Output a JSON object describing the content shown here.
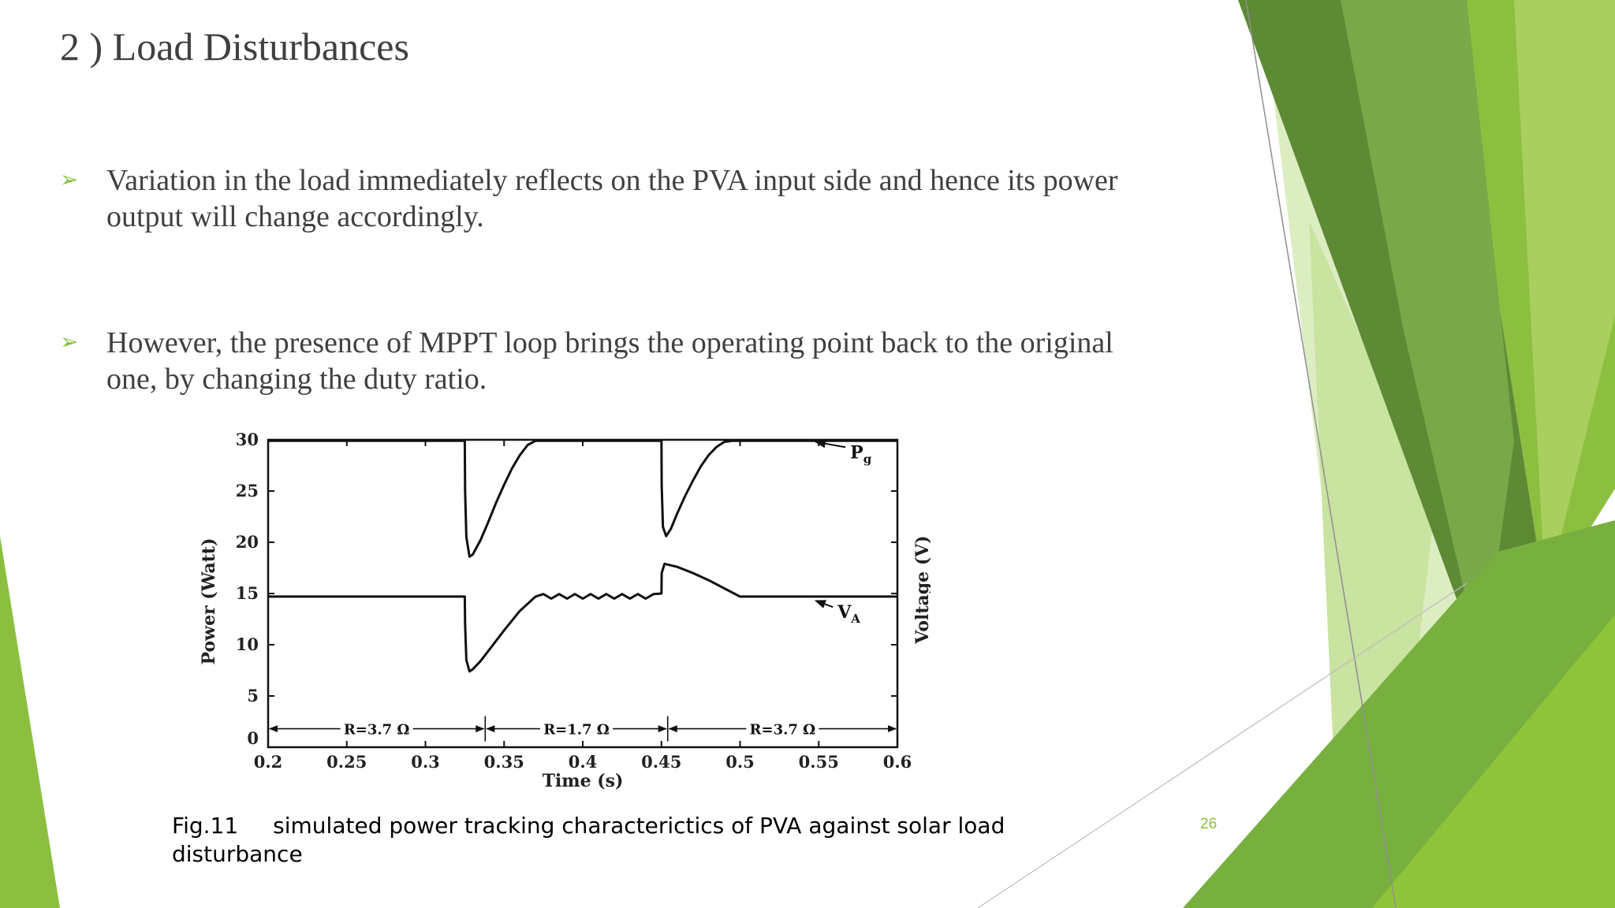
{
  "slide": {
    "title": "2 )  Load Disturbances",
    "bullets": [
      {
        "marker": "➢",
        "text": "Variation in the load immediately reflects on the PVA input side and hence its power output will change accordingly."
      },
      {
        "marker": "➢",
        "text": "However, the presence of MPPT loop brings the operating point back to the original one, by changing the duty ratio."
      }
    ],
    "caption_fig": "Fig.11",
    "caption_text": "simulated power tracking characterictics of PVA against solar  load disturbance",
    "slide_number": "26"
  },
  "colors": {
    "accent": "#8cbf3f",
    "text": "#404040",
    "green_dark": "#5e8a35",
    "green_mid": "#78a848",
    "green_light": "#8cbf3f",
    "green_pale": "#c9e3a0"
  },
  "chart_data": {
    "type": "line",
    "xlabel": "Time (s)",
    "ylabel": "Power (Watt)",
    "ylabel_right": "Voltage (V)",
    "xlim": [
      0.2,
      0.6
    ],
    "ylim": [
      0,
      30
    ],
    "x_ticks": [
      0.2,
      0.25,
      0.3,
      0.35,
      0.4,
      0.45,
      0.5,
      0.55,
      0.6
    ],
    "x_tick_labels": [
      "0.2",
      "0.25",
      "0.3",
      "0.35",
      "0.4",
      "0.45",
      "0.5",
      "0.55",
      "0.6"
    ],
    "y_ticks": [
      0,
      5,
      10,
      15,
      20,
      25,
      30
    ],
    "y_tick_labels": [
      "0",
      "5",
      "10",
      "15",
      "20",
      "25",
      "30"
    ],
    "series": [
      {
        "name": "Pg",
        "label_main": "P",
        "label_sub": "g",
        "label_at": [
          0.57,
          28.2
        ],
        "arrow_to": [
          0.548,
          29.8
        ],
        "x": [
          0.2,
          0.325,
          0.3252,
          0.326,
          0.328,
          0.33,
          0.335,
          0.34,
          0.345,
          0.35,
          0.355,
          0.36,
          0.365,
          0.37,
          0.375,
          0.38,
          0.385,
          0.45,
          0.4502,
          0.451,
          0.453,
          0.456,
          0.46,
          0.465,
          0.47,
          0.475,
          0.48,
          0.485,
          0.49,
          0.495,
          0.5,
          0.6
        ],
        "y": [
          29.9,
          29.9,
          25.0,
          20.5,
          18.6,
          18.8,
          20.2,
          22.0,
          23.9,
          25.6,
          27.2,
          28.5,
          29.5,
          29.9,
          29.9,
          29.9,
          29.9,
          29.9,
          25.5,
          21.5,
          20.6,
          21.3,
          22.8,
          24.5,
          26.0,
          27.4,
          28.5,
          29.3,
          29.8,
          29.9,
          29.9,
          29.9
        ]
      },
      {
        "name": "VA",
        "label_main": "V",
        "label_sub": "A",
        "label_at": [
          0.562,
          12.6
        ],
        "arrow_to": [
          0.548,
          14.3
        ],
        "x": [
          0.2,
          0.325,
          0.3252,
          0.326,
          0.328,
          0.33,
          0.335,
          0.34,
          0.35,
          0.36,
          0.37,
          0.375,
          0.38,
          0.385,
          0.39,
          0.395,
          0.4,
          0.405,
          0.41,
          0.415,
          0.42,
          0.425,
          0.43,
          0.435,
          0.44,
          0.445,
          0.45,
          0.4502,
          0.452,
          0.46,
          0.47,
          0.48,
          0.49,
          0.5,
          0.6
        ],
        "y": [
          14.7,
          14.7,
          12.0,
          8.5,
          7.4,
          7.6,
          8.4,
          9.4,
          11.4,
          13.3,
          14.7,
          14.95,
          14.5,
          14.95,
          14.5,
          14.95,
          14.5,
          14.95,
          14.5,
          14.95,
          14.5,
          14.95,
          14.5,
          14.95,
          14.5,
          14.95,
          15.0,
          17.0,
          17.9,
          17.6,
          17.0,
          16.3,
          15.5,
          14.7,
          14.7
        ]
      }
    ],
    "load_regions": [
      {
        "label": "R=3.7 Ω",
        "from": 0.2,
        "to": 0.338
      },
      {
        "label": "R=1.7 Ω",
        "from": 0.338,
        "to": 0.454
      },
      {
        "label": "R=3.7 Ω",
        "from": 0.454,
        "to": 0.6
      }
    ],
    "region_level": 1.8,
    "grid": false,
    "legend": "none"
  }
}
